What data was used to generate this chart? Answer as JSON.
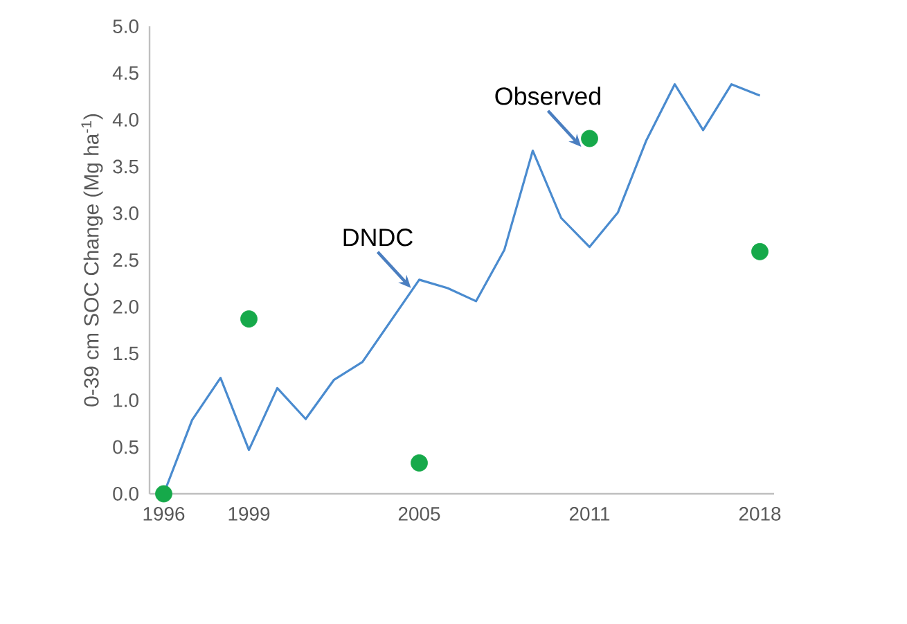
{
  "chart_data": {
    "type": "line",
    "categories": [
      "1996",
      null,
      null,
      "1999",
      null,
      null,
      null,
      null,
      null,
      "2005",
      null,
      null,
      null,
      null,
      null,
      "2011",
      null,
      null,
      null,
      null,
      null,
      "2018"
    ],
    "ylabel": "0-39 cm SOC Change (Mg ha$^{-1}$)",
    "ylim": [
      0,
      5
    ],
    "yticks": [
      {
        "value": 0,
        "label": "0.0"
      },
      {
        "value": 0.5,
        "label": "0.5"
      },
      {
        "value": 1,
        "label": "1.0"
      },
      {
        "value": 1.5,
        "label": "1.5"
      },
      {
        "value": 2,
        "label": "2.0"
      },
      {
        "value": 2.5,
        "label": "2.5"
      },
      {
        "value": 3,
        "label": "3.0"
      },
      {
        "value": 3.5,
        "label": "3.5"
      },
      {
        "value": 4,
        "label": "4.0"
      },
      {
        "value": 4.5,
        "label": "4.5"
      },
      {
        "value": 5,
        "label": "5.0"
      }
    ],
    "series": [
      {
        "color": "#4a8bcf",
        "marker": "none",
        "values": [
          0,
          0.79,
          1.24,
          0.47,
          1.13,
          0.8,
          1.22,
          1.41,
          1.85,
          2.29,
          2.2,
          2.06,
          2.61,
          3.67,
          2.95,
          2.64,
          3.01,
          3.78,
          4.38,
          3.89,
          4.38,
          4.26
        ]
      },
      {
        "type": "scatter",
        "color": "#16a94a",
        "marker": "circle",
        "values": [
          0,
          null,
          null,
          1.87,
          null,
          null,
          null,
          null,
          null,
          0.33,
          null,
          null,
          null,
          null,
          null,
          3.8,
          null,
          null,
          null,
          null,
          null,
          2.59
        ]
      }
    ],
    "annotations": [
      {
        "text": "DNDC",
        "x": "2005",
        "y": 2.29
      },
      {
        "text": "Observed",
        "x": "2011",
        "y": 3.8
      }
    ],
    "grid": false
  }
}
